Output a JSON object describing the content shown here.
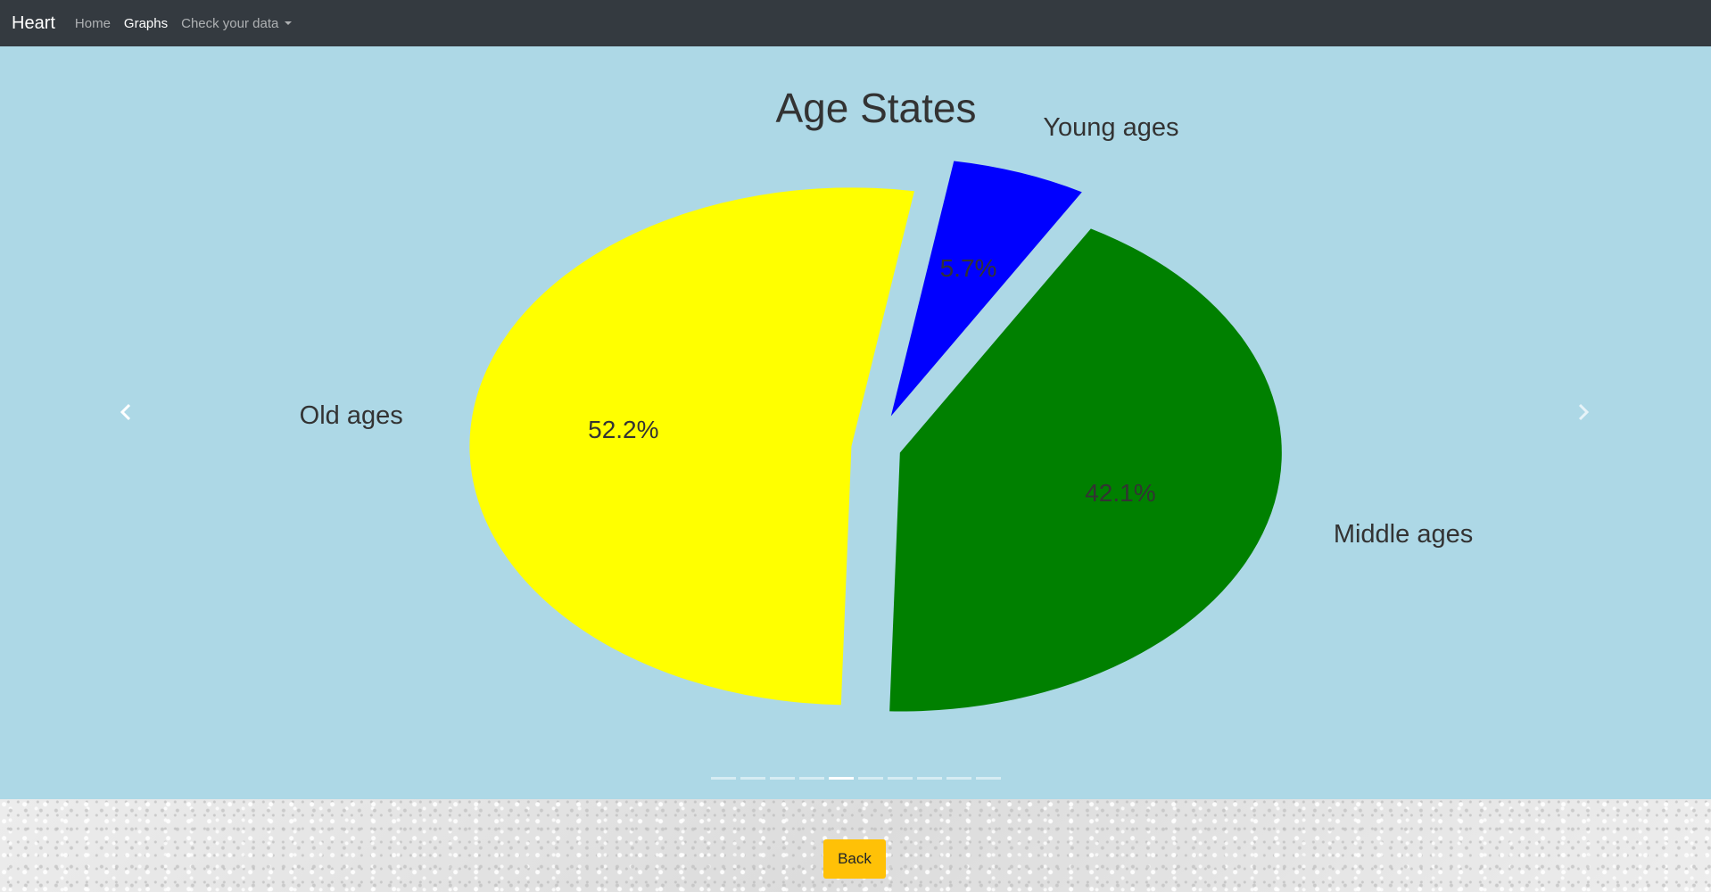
{
  "navbar": {
    "brand": "Heart",
    "links": [
      "Home",
      "Graphs",
      "Check your data"
    ],
    "active_link": "Graphs"
  },
  "carousel": {
    "slide_count": 10,
    "active_index": 4,
    "background": "#add8e6"
  },
  "chart_data": {
    "type": "pie",
    "title": "Age States",
    "labels": [
      "Young ages",
      "Old ages",
      "Middle ages"
    ],
    "values": [
      5.7,
      52.2,
      42.1
    ],
    "value_labels": [
      "5.7%",
      "52.2%",
      "42.1%"
    ],
    "colors": [
      "#0000ff",
      "#ffff00",
      "#008000"
    ],
    "exploded": true,
    "legend": "none"
  },
  "footer": {
    "back_label": "Back",
    "back_color": "#ffc107"
  }
}
